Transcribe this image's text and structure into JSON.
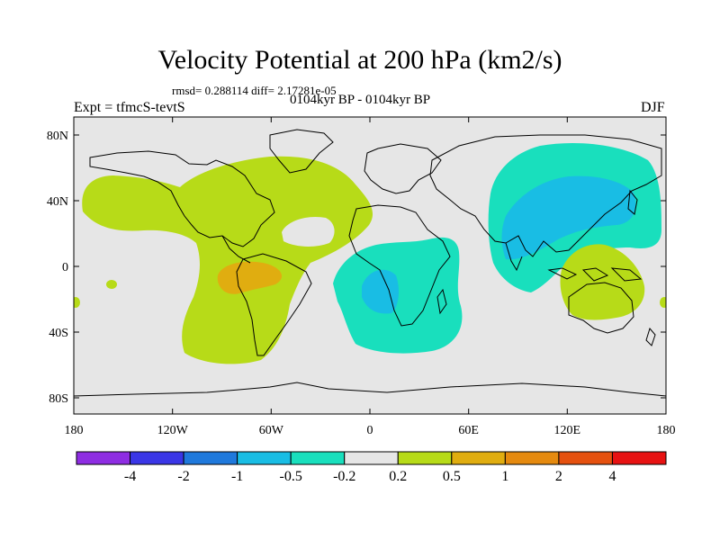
{
  "title": "Velocity Potential at 200 hPa (km2/s)",
  "stats": "rmsd= 0.288114 diff= 2.17281e-05",
  "period": "0104kyr BP - 0104kyr BP",
  "experiment": "Expt = tfmcS-tevtS",
  "season": "DJF",
  "background_color": "#e6e6e6",
  "lat_ticks": [
    "80N",
    "40N",
    "0",
    "40S",
    "80S"
  ],
  "lon_ticks": [
    "180",
    "120W",
    "60W",
    "0",
    "60E",
    "120E",
    "180"
  ],
  "colorbar": {
    "colors": [
      "#8e2de2",
      "#3a36e6",
      "#1f79dc",
      "#19bde4",
      "#19dfbd",
      "#e6e6e6",
      "#b7db18",
      "#e0ad10",
      "#e58a0f",
      "#e5510f",
      "#e71212"
    ],
    "labels": [
      "-4",
      "-2",
      "-1",
      "-0.5",
      "-0.2",
      "0.2",
      "0.5",
      "1",
      "2",
      "4"
    ]
  }
}
